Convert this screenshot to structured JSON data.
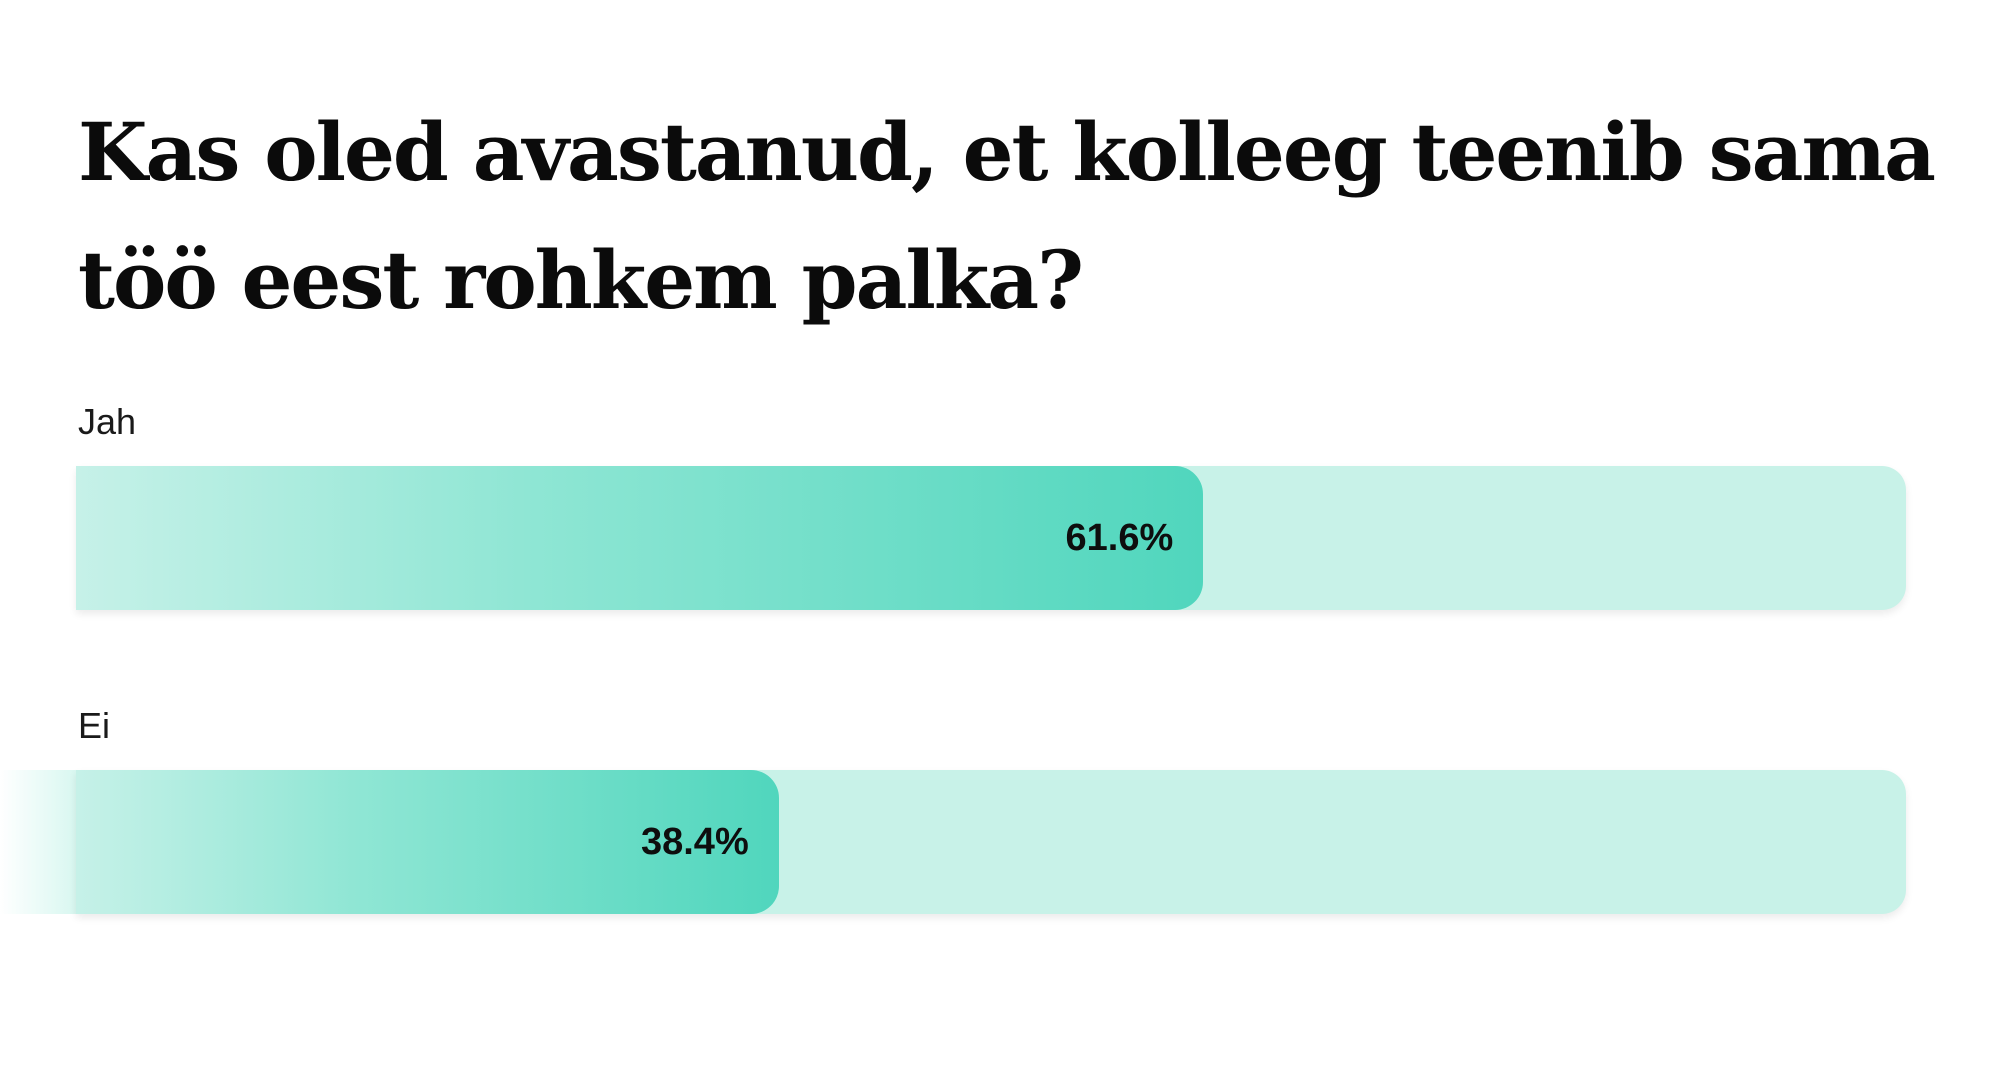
{
  "chart_data": {
    "type": "bar",
    "orientation": "horizontal",
    "title": "Kas oled avastanud, et kolleeg teenib sama töö eest rohkem palka?",
    "categories": [
      "Jah",
      "Ei"
    ],
    "values": [
      61.6,
      38.4
    ],
    "value_labels": [
      "61.6%",
      "38.4%"
    ],
    "unit": "%",
    "xlim": [
      0,
      100
    ],
    "grid": false,
    "legend": "none",
    "colors": {
      "track": "#c8f2e8",
      "fill_start": "#c6f1e8",
      "fill_end": "#50d6bd",
      "text": "#0b0b0b"
    }
  }
}
